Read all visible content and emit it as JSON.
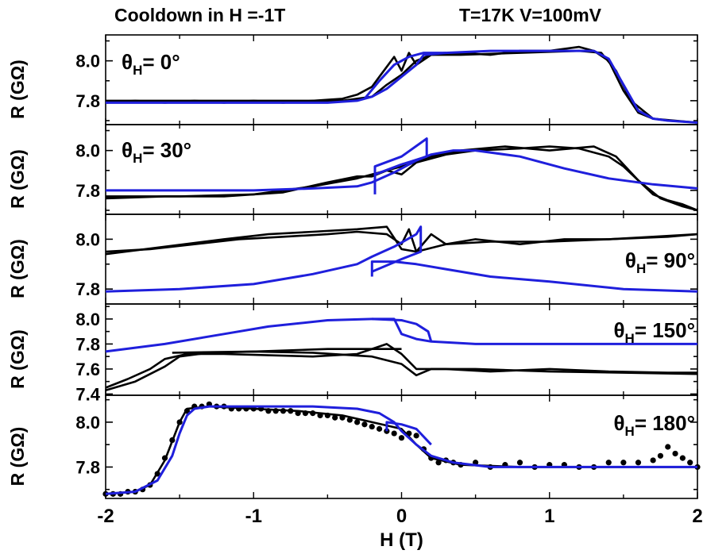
{
  "header": {
    "left": "Cooldown in H =-1T",
    "right": "T=17K  V=100mV"
  },
  "chart_data": [
    {
      "type": "line",
      "annotation_prefix": "θ",
      "annotation_sub": "H",
      "annotation_value": "= 0°",
      "ylabel": "R (GΩ)",
      "ylim": [
        7.68,
        8.13
      ],
      "yticks": [
        "8.0",
        "7.8"
      ],
      "yticks_val": [
        8.0,
        7.8
      ],
      "series": [
        {
          "color": "#000000",
          "x": [
            -2,
            -1.8,
            -1.6,
            -1.4,
            -1.2,
            -1,
            -0.8,
            -0.6,
            -0.4,
            -0.3,
            -0.2,
            -0.15,
            -0.1,
            -0.05,
            0,
            0.05,
            0.1,
            0.2,
            0.4,
            0.6,
            0.8,
            1.0,
            1.1,
            1.2,
            1.3,
            1.4,
            1.5,
            1.6,
            1.7,
            1.8,
            2.0
          ],
          "y": [
            7.79,
            7.8,
            7.79,
            7.8,
            7.79,
            7.8,
            7.79,
            7.8,
            7.81,
            7.83,
            7.87,
            7.92,
            7.97,
            8.02,
            7.95,
            8.04,
            7.98,
            8.03,
            8.04,
            8.03,
            8.05,
            8.05,
            8.06,
            8.07,
            8.05,
            8.0,
            7.85,
            7.74,
            7.71,
            7.7,
            7.69
          ]
        },
        {
          "color": "#000000",
          "x": [
            -2,
            -1.6,
            -1.2,
            -0.8,
            -0.4,
            -0.2,
            -0.1,
            0,
            0.1,
            0.2,
            0.4,
            0.8,
            1.2,
            1.35,
            1.45,
            1.55,
            1.7,
            2.0
          ],
          "y": [
            7.8,
            7.8,
            7.8,
            7.8,
            7.8,
            7.82,
            7.88,
            7.93,
            8.0,
            8.03,
            8.03,
            8.04,
            8.05,
            8.04,
            7.95,
            7.8,
            7.71,
            7.69
          ]
        },
        {
          "color": "#1f1fdc",
          "x": [
            -2,
            -1.5,
            -1,
            -0.5,
            -0.3,
            -0.2,
            -0.1,
            0,
            0.1,
            0.15,
            0.3,
            0.6,
            1.0,
            1.3,
            1.4,
            1.5,
            1.6,
            1.7,
            1.8,
            2.0
          ],
          "y": [
            7.79,
            7.79,
            7.79,
            7.79,
            7.8,
            7.82,
            7.86,
            7.92,
            7.98,
            8.03,
            8.04,
            8.05,
            8.05,
            8.05,
            8.01,
            7.88,
            7.75,
            7.71,
            7.7,
            7.69
          ]
        },
        {
          "color": "#1f1fdc",
          "x": [
            -0.25,
            -0.15,
            -0.05,
            0.05,
            0.15,
            0.3
          ],
          "y": [
            7.81,
            7.9,
            7.98,
            8.02,
            8.04,
            8.04
          ]
        }
      ]
    },
    {
      "type": "line",
      "annotation_prefix": "θ",
      "annotation_sub": "H",
      "annotation_value": "= 30°",
      "ylabel": "R (GΩ)",
      "ylim": [
        7.68,
        8.13
      ],
      "yticks": [
        "8.0",
        "7.8"
      ],
      "yticks_val": [
        8.0,
        7.8
      ],
      "series": [
        {
          "color": "#000000",
          "x": [
            -2,
            -1.6,
            -1.2,
            -0.8,
            -0.5,
            -0.3,
            -0.2,
            -0.1,
            0,
            0.1,
            0.2,
            0.3,
            0.5,
            0.8,
            1.0,
            1.2,
            1.4,
            1.5,
            1.6,
            1.7,
            1.8,
            1.9,
            2.0
          ],
          "y": [
            7.76,
            7.77,
            7.77,
            7.79,
            7.84,
            7.87,
            7.87,
            7.9,
            7.88,
            7.94,
            7.96,
            7.98,
            8.0,
            8.01,
            8.02,
            8.01,
            7.97,
            7.92,
            7.85,
            7.78,
            7.75,
            7.73,
            7.7
          ]
        },
        {
          "color": "#000000",
          "x": [
            -2,
            -1.5,
            -1.0,
            -0.6,
            -0.3,
            -0.1,
            0.05,
            0.2,
            0.4,
            0.7,
            1.0,
            1.3,
            1.45,
            1.6,
            1.75,
            1.9,
            2.0
          ],
          "y": [
            7.77,
            7.77,
            7.78,
            7.82,
            7.86,
            7.9,
            7.93,
            7.97,
            8.0,
            8.02,
            8.0,
            8.02,
            7.97,
            7.85,
            7.76,
            7.72,
            7.7
          ]
        },
        {
          "color": "#1f1fdc",
          "x": [
            -2,
            -1.5,
            -1.0,
            -0.6,
            -0.3,
            -0.2,
            -0.05,
            0.1,
            0.2,
            0.35,
            0.5,
            0.8,
            1.1,
            1.4,
            1.7,
            2.0
          ],
          "y": [
            7.8,
            7.8,
            7.8,
            7.81,
            7.82,
            7.84,
            7.89,
            7.95,
            7.98,
            8.0,
            8.0,
            7.97,
            7.91,
            7.86,
            7.83,
            7.81
          ]
        },
        {
          "color": "#1f1fdc",
          "x": [
            -0.18,
            -0.18,
            0,
            0.17,
            0.17,
            0.0,
            -0.18
          ],
          "y": [
            7.78,
            7.92,
            7.97,
            8.06,
            7.97,
            7.93,
            7.88
          ]
        }
      ]
    },
    {
      "type": "line",
      "annotation_prefix": "θ",
      "annotation_sub": "H",
      "annotation_value": "= 90°",
      "ylabel": "R (GΩ)",
      "ylim": [
        7.74,
        8.1
      ],
      "yticks": [
        "8.0",
        "7.8"
      ],
      "yticks_val": [
        8.0,
        7.8
      ],
      "series": [
        {
          "color": "#000000",
          "x": [
            -2,
            -1.7,
            -1.4,
            -1.1,
            -0.8,
            -0.5,
            -0.3,
            -0.1,
            0,
            0.05,
            0.1,
            0.2,
            0.3,
            0.5,
            0.8,
            1.1,
            1.4,
            1.7,
            2.0
          ],
          "y": [
            7.95,
            7.96,
            7.98,
            8.0,
            8.01,
            8.02,
            8.03,
            8.02,
            7.98,
            8.04,
            7.95,
            8.02,
            7.98,
            8.0,
            7.98,
            8.0,
            8.0,
            8.01,
            8.02
          ]
        },
        {
          "color": "#000000",
          "x": [
            -2,
            -1.6,
            -1.2,
            -0.9,
            -0.6,
            -0.3,
            -0.1,
            0,
            0.1,
            0.3,
            0.6,
            1.0,
            1.4,
            1.8,
            2.0
          ],
          "y": [
            7.94,
            7.97,
            8.0,
            8.02,
            8.03,
            8.04,
            8.05,
            7.96,
            7.95,
            7.98,
            7.99,
            7.99,
            8.0,
            8.01,
            8.02
          ]
        },
        {
          "color": "#1f1fdc",
          "x": [
            -2,
            -1.5,
            -1.0,
            -0.6,
            -0.3,
            -0.2,
            -0.05,
            0.1,
            0.13,
            0.13,
            0,
            -0.2
          ],
          "y": [
            7.79,
            7.8,
            7.82,
            7.86,
            7.9,
            7.93,
            7.97,
            8.02,
            8.05,
            7.95,
            7.92,
            7.87
          ]
        },
        {
          "color": "#1f1fdc",
          "x": [
            -0.2,
            -0.2,
            -0.05,
            0.1,
            0.3,
            0.6,
            1.0,
            1.5,
            2.0
          ],
          "y": [
            7.85,
            7.91,
            7.91,
            7.9,
            7.88,
            7.85,
            7.83,
            7.8,
            7.79
          ]
        }
      ]
    },
    {
      "type": "line",
      "annotation_prefix": "θ",
      "annotation_sub": "H",
      "annotation_value": "= 150°",
      "ylabel": "R (GΩ)",
      "ylim": [
        7.39,
        8.12
      ],
      "yticks": [
        "8.0",
        "7.8",
        "7.6",
        "7.4"
      ],
      "yticks_val": [
        8.0,
        7.8,
        7.6,
        7.4
      ],
      "series": [
        {
          "color": "#000000",
          "x": [
            -2,
            -1.85,
            -1.7,
            -1.6,
            -1.45,
            -1.2,
            -0.9,
            -0.6,
            -0.3,
            -0.1,
            0,
            0.1,
            0.3,
            0.6,
            1.0,
            1.4,
            1.8,
            2.0
          ],
          "y": [
            7.45,
            7.52,
            7.6,
            7.68,
            7.72,
            7.72,
            7.71,
            7.7,
            7.72,
            7.8,
            7.72,
            7.6,
            7.6,
            7.58,
            7.6,
            7.58,
            7.57,
            7.57
          ]
        },
        {
          "color": "#000000",
          "x": [
            -2,
            -1.8,
            -1.6,
            -1.5,
            -1.3,
            -1.0,
            -0.6,
            -0.2,
            0,
            0.1,
            0.2,
            0.5,
            1.0,
            1.5,
            2.0
          ],
          "y": [
            7.43,
            7.5,
            7.62,
            7.7,
            7.73,
            7.74,
            7.73,
            7.7,
            7.64,
            7.55,
            7.6,
            7.6,
            7.58,
            7.57,
            7.56
          ]
        },
        {
          "color": "#000000",
          "x": [
            -1.55,
            -1.0,
            -0.5,
            0.0
          ],
          "y": [
            7.73,
            7.74,
            7.76,
            7.76
          ]
        },
        {
          "color": "#1f1fdc",
          "x": [
            -2,
            -1.6,
            -1.2,
            -0.9,
            -0.5,
            -0.2,
            -0.1,
            -0.05,
            0.0,
            0.1,
            0.2,
            0.5,
            1.0,
            1.5,
            2.0
          ],
          "y": [
            7.74,
            7.8,
            7.88,
            7.94,
            7.99,
            8.0,
            8.0,
            8.0,
            7.88,
            7.84,
            7.82,
            7.8,
            7.8,
            7.8,
            7.8
          ]
        },
        {
          "color": "#1f1fdc",
          "x": [
            -0.2,
            0.0,
            0.1,
            0.18,
            0.2
          ],
          "y": [
            8.0,
            7.99,
            7.96,
            7.9,
            7.82
          ]
        }
      ]
    },
    {
      "type": "scatter+line",
      "annotation_prefix": "θ",
      "annotation_sub": "H",
      "annotation_value": "= 180°",
      "ylabel": "R (GΩ)",
      "ylim": [
        7.66,
        8.12
      ],
      "yticks": [
        "8.0",
        "7.8"
      ],
      "yticks_val": [
        8.0,
        7.8
      ],
      "markers": {
        "color": "#000000",
        "x": [
          -2,
          -1.95,
          -1.9,
          -1.85,
          -1.8,
          -1.75,
          -1.7,
          -1.65,
          -1.6,
          -1.55,
          -1.5,
          -1.45,
          -1.4,
          -1.35,
          -1.3,
          -1.25,
          -1.2,
          -1.15,
          -1.1,
          -1.05,
          -1.0,
          -0.95,
          -0.9,
          -0.85,
          -0.8,
          -0.75,
          -0.7,
          -0.65,
          -0.6,
          -0.55,
          -0.5,
          -0.45,
          -0.4,
          -0.35,
          -0.3,
          -0.25,
          -0.2,
          -0.15,
          -0.1,
          -0.05,
          0.0,
          0.05,
          0.1,
          0.15,
          0.2,
          0.25,
          0.3,
          0.35,
          0.4,
          0.5,
          0.6,
          0.7,
          0.8,
          0.9,
          1.0,
          1.1,
          1.2,
          1.3,
          1.4,
          1.5,
          1.6,
          1.7,
          1.75,
          1.8,
          1.85,
          1.9,
          1.95,
          2.0
        ],
        "y": [
          7.68,
          7.68,
          7.68,
          7.69,
          7.69,
          7.7,
          7.72,
          7.77,
          7.84,
          7.92,
          8.0,
          8.05,
          8.07,
          8.07,
          8.08,
          8.07,
          8.07,
          8.06,
          8.06,
          8.06,
          8.06,
          8.06,
          8.05,
          8.05,
          8.05,
          8.05,
          8.04,
          8.04,
          8.04,
          8.03,
          8.03,
          8.02,
          8.02,
          8.01,
          8.0,
          7.99,
          7.98,
          7.97,
          7.96,
          7.95,
          7.93,
          7.95,
          7.94,
          7.88,
          7.84,
          7.82,
          7.83,
          7.82,
          7.81,
          7.82,
          7.8,
          7.81,
          7.82,
          7.8,
          7.81,
          7.81,
          7.8,
          7.8,
          7.82,
          7.82,
          7.82,
          7.83,
          7.85,
          7.89,
          7.86,
          7.84,
          7.82,
          7.8
        ]
      },
      "series": [
        {
          "color": "#000000",
          "x": [
            -2,
            -1.8,
            -1.7,
            -1.6,
            -1.5,
            -1.45,
            -1.3,
            -1.0,
            -0.7,
            -0.4,
            -0.2,
            0,
            0.1,
            0.2,
            0.4,
            0.8,
            1.2,
            1.6,
            2.0
          ],
          "y": [
            7.68,
            7.69,
            7.72,
            7.83,
            8.0,
            8.06,
            8.07,
            8.06,
            8.05,
            8.03,
            8.0,
            7.97,
            7.9,
            7.84,
            7.81,
            7.8,
            7.8,
            7.8,
            7.8
          ]
        },
        {
          "color": "#1f1fdc",
          "x": [
            -2,
            -1.8,
            -1.65,
            -1.55,
            -1.5,
            -1.45,
            -1.4,
            -1.3,
            -1.0,
            -0.6,
            -0.3,
            -0.15,
            -0.05,
            0.0,
            0.1,
            0.2,
            0.35,
            0.6,
            1.0,
            1.5,
            2.0
          ],
          "y": [
            7.68,
            7.69,
            7.74,
            7.85,
            7.95,
            8.03,
            8.06,
            8.07,
            8.07,
            8.07,
            8.06,
            8.04,
            8.0,
            7.96,
            7.9,
            7.85,
            7.82,
            7.8,
            7.8,
            7.8,
            7.8
          ]
        },
        {
          "color": "#1f1fdc",
          "x": [
            -0.1,
            -0.1,
            0.0,
            0.1,
            0.2
          ],
          "y": [
            7.96,
            8.0,
            7.99,
            7.97,
            7.9
          ]
        }
      ]
    }
  ],
  "xaxis": {
    "xlabel": "H (T)",
    "xlim": [
      -2,
      2
    ],
    "xticks": [
      "-2",
      "-1",
      "0",
      "1",
      "2"
    ],
    "xticks_val": [
      -2,
      -1,
      0,
      1,
      2
    ]
  }
}
